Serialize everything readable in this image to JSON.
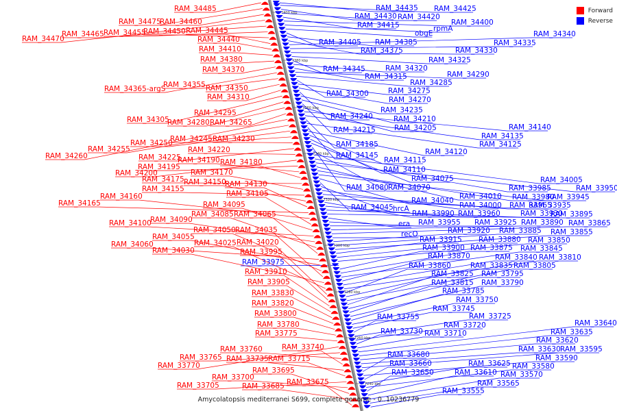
{
  "caption": "Amycolatopsis mediterranei S699, complete genome - 0..10236779",
  "legend": [
    {
      "label": "Forward",
      "color": "#ff0000"
    },
    {
      "label": "Reverse",
      "color": "#0000ff"
    }
  ],
  "ticks": [
    "7400 kbp",
    "7380 kbp",
    "7360 kbp",
    "7340 kbp",
    "7320 kbp",
    "7300 kbp",
    "7280 kbp",
    "7260 kbp",
    "7240 kbp"
  ],
  "forward_genes": [
    "RAM_34485",
    "RAM_34475",
    "RAM_34460",
    "RAM_34470",
    "RAM_34465",
    "RAM_34455",
    "RAM_34450",
    "RAM_34445",
    "RAM_34440",
    "RAM_34410",
    "RAM_34380",
    "RAM_34370",
    "RAM_34365-argS",
    "RAM_34355",
    "RAM_34350",
    "RAM_34310",
    "RAM_34305",
    "RAM_34295",
    "RAM_34280",
    "RAM_34265",
    "RAM_34260",
    "RAM_34255",
    "RAM_34250",
    "RAM_34245",
    "RAM_34230",
    "RAM_34225",
    "RAM_34220",
    "RAM_34200",
    "RAM_34195",
    "RAM_34190",
    "RAM_34180",
    "RAM_34175",
    "RAM_34170",
    "RAM_34155",
    "RAM_34150",
    "RAM_34130",
    "RAM_34165",
    "RAM_34160",
    "RAM_34105",
    "RAM_34095",
    "RAM_34100",
    "RAM_34090",
    "RAM_34085",
    "RAM_34065",
    "RAM_34060",
    "RAM_34055",
    "RAM_34050",
    "RAM_34035",
    "RAM_34030",
    "RAM_34025",
    "RAM_34020",
    "RAM_33995",
    "RAM_33910",
    "RAM_33905",
    "RAM_33830",
    "RAM_33820",
    "RAM_33800",
    "RAM_33780",
    "RAM_33775",
    "RAM_33770",
    "RAM_33765",
    "RAM_33760",
    "RAM_33740",
    "RAM_33735",
    "RAM_33715",
    "RAM_33705",
    "RAM_33700",
    "RAM_33695",
    "RAM_33685",
    "RAM_33675"
  ],
  "reverse_genes": [
    "RAM_34435",
    "RAM_34425",
    "RAM_34430",
    "RAM_34420",
    "RAM_34415",
    "RAM_34400",
    "rpmA",
    "obgE",
    "RAM_34405",
    "RAM_34385",
    "RAM_34375",
    "RAM_34340",
    "RAM_34335",
    "RAM_34330",
    "RAM_34325",
    "RAM_34345",
    "RAM_34320",
    "RAM_34315",
    "RAM_34290",
    "RAM_34285",
    "RAM_34300",
    "RAM_34275",
    "RAM_34270",
    "RAM_34240",
    "RAM_34235",
    "RAM_34210",
    "RAM_34215",
    "RAM_34205",
    "RAM_34140",
    "RAM_34135",
    "RAM_34185",
    "RAM_34125",
    "RAM_34145",
    "RAM_34120",
    "RAM_34115",
    "RAM_34110",
    "RAM_34075",
    "RAM_34080",
    "RAM_34070",
    "RAM_34005",
    "RAM_33985",
    "RAM_33950",
    "RAM_34010",
    "RAM_33980",
    "RAM_33945",
    "RAM_34040",
    "RAM_34045",
    "hrcA",
    "RAM_34000",
    "RAM_33965",
    "RAM_33935",
    "RAM_33990",
    "RAM_33960",
    "RAM_33930",
    "RAM_33895",
    "era",
    "RAM_33955",
    "RAM_33925",
    "RAM_33890",
    "RAM_33865",
    "recO",
    "RAM_33920",
    "RAM_33885",
    "RAM_33855",
    "RAM_33915",
    "RAM_33880",
    "RAM_33850",
    "RAM_33975",
    "RAM_33900",
    "RAM_33875",
    "RAM_33845",
    "RAM_33870",
    "RAM_33840",
    "RAM_33810",
    "RAM_33860",
    "RAM_33835",
    "RAM_33805",
    "RAM_33825",
    "RAM_33795",
    "RAM_33815",
    "RAM_33790",
    "RAM_33785",
    "RAM_33750",
    "RAM_33745",
    "RAM_33755",
    "RAM_33725",
    "RAM_33720",
    "RAM_33730",
    "RAM_33710",
    "RAM_33640",
    "RAM_33635",
    "RAM_33620",
    "RAM_33630",
    "RAM_33595",
    "RAM_33680",
    "RAM_33590",
    "RAM_33660",
    "RAM_33625",
    "RAM_33580",
    "RAM_33650",
    "RAM_33610",
    "RAM_33570",
    "RAM_33565",
    "RAM_33555"
  ]
}
